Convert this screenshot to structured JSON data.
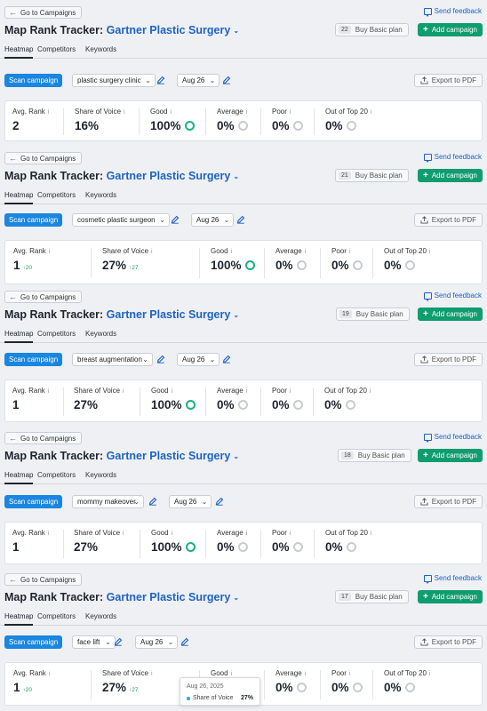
{
  "common": {
    "back_label": "Go to Campaigns",
    "feedback_label": "Send feedback",
    "title_prefix": "Map Rank Tracker:",
    "project": "Gartner Plastic Surgery",
    "buy_label": "Buy Basic plan",
    "add_label": "Add campaign",
    "tabs": [
      "Heatmap",
      "Competitors",
      "Keywords"
    ],
    "scan_label": "Scan campaign",
    "date": "Aug 26",
    "export_label": "Export to PDF",
    "metric_labels": [
      "Avg. Rank",
      "Share of Voice",
      "Good",
      "Average",
      "Poor",
      "Out of Top 20"
    ]
  },
  "sections": [
    {
      "plan_count": "22",
      "keyword": "plastic surgery clinic",
      "values": [
        "2",
        "16%",
        "100%",
        "0%",
        "0%",
        "0%"
      ],
      "deltas": [
        "",
        ""
      ]
    },
    {
      "plan_count": "21",
      "keyword": "cosmetic plastic surgeon",
      "values": [
        "1",
        "27%",
        "100%",
        "0%",
        "0%",
        "0%"
      ],
      "deltas": [
        "↑20",
        "↑27"
      ]
    },
    {
      "plan_count": "19",
      "keyword": "breast augmentation",
      "values": [
        "1",
        "27%",
        "100%",
        "0%",
        "0%",
        "0%"
      ],
      "deltas": [
        "",
        ""
      ]
    },
    {
      "plan_count": "18",
      "keyword": "mommy makeover",
      "values": [
        "1",
        "27%",
        "100%",
        "0%",
        "0%",
        "0%"
      ],
      "deltas": [
        "",
        ""
      ]
    },
    {
      "plan_count": "17",
      "keyword": "face lift",
      "values": [
        "1",
        "27%",
        "100%",
        "0%",
        "0%",
        "0%"
      ],
      "deltas": [
        "↑20",
        "↑27"
      ]
    }
  ],
  "tooltip": {
    "date": "Aug 26, 2025",
    "series": "Share of Voice",
    "value": "27%"
  },
  "colors": {
    "accent": "#1d63c4",
    "primary_button": "#0f9d6e",
    "scan_button": "#1a86e0",
    "good": "#17b37a"
  }
}
